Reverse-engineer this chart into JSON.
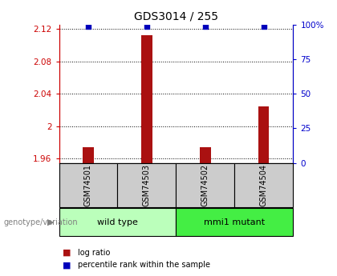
{
  "title": "GDS3014 / 255",
  "samples": [
    "GSM74501",
    "GSM74503",
    "GSM74502",
    "GSM74504"
  ],
  "log_ratios": [
    1.974,
    2.112,
    1.974,
    2.025
  ],
  "percentile_ranks": [
    99,
    99,
    99,
    99
  ],
  "ymin": 1.955,
  "ymax": 2.125,
  "yticks": [
    1.96,
    2.0,
    2.04,
    2.08,
    2.12
  ],
  "ytick_labels": [
    "1.96",
    "2",
    "2.04",
    "2.08",
    "2.12"
  ],
  "right_yticks": [
    0,
    25,
    50,
    75,
    100
  ],
  "right_ytick_labels": [
    "0",
    "25",
    "50",
    "75",
    "100%"
  ],
  "groups": [
    {
      "label": "wild type",
      "indices": [
        0,
        1
      ],
      "color": "#bbffbb"
    },
    {
      "label": "mmi1 mutant",
      "indices": [
        2,
        3
      ],
      "color": "#44ee44"
    }
  ],
  "bar_color": "#aa1111",
  "dot_color": "#0000bb",
  "bar_width": 0.18,
  "dot_size": 25,
  "left_axis_color": "#cc0000",
  "right_axis_color": "#0000cc",
  "background_color": "#ffffff",
  "sample_box_color": "#cccccc",
  "genotype_label": "genotype/variation",
  "legend_bar_label": "log ratio",
  "legend_dot_label": "percentile rank within the sample",
  "title_fontsize": 10,
  "label_fontsize": 8,
  "tick_fontsize": 7.5,
  "sample_fontsize": 7
}
